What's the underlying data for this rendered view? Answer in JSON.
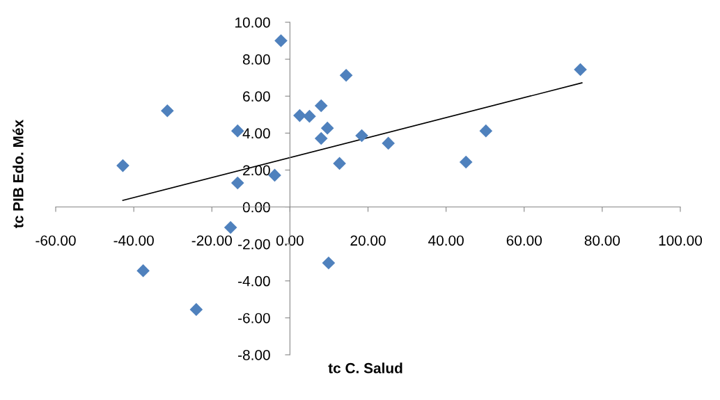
{
  "chart_data": {
    "type": "scatter",
    "xlabel": "tc C. Salud",
    "ylabel": "tc PIB Edo. Méx",
    "marker": "diamond",
    "grid": false,
    "xlim": [
      -60,
      100
    ],
    "ylim": [
      -8,
      10
    ],
    "xticks": [
      {
        "value": -60,
        "label": "-60.00"
      },
      {
        "value": -40,
        "label": "-40.00"
      },
      {
        "value": -20,
        "label": "-20.00"
      },
      {
        "value": 0,
        "label": "0.00"
      },
      {
        "value": 20,
        "label": "20.00"
      },
      {
        "value": 40,
        "label": "40.00"
      },
      {
        "value": 60,
        "label": "60.00"
      },
      {
        "value": 80,
        "label": "80.00"
      },
      {
        "value": 100,
        "label": "100.00"
      }
    ],
    "yticks": [
      {
        "value": -8,
        "label": "-8.00"
      },
      {
        "value": -6,
        "label": "-6.00"
      },
      {
        "value": -4,
        "label": "-4.00"
      },
      {
        "value": -2,
        "label": "-2.00"
      },
      {
        "value": 0,
        "label": "0.00"
      },
      {
        "value": 2,
        "label": "2.00"
      },
      {
        "value": 4,
        "label": "4.00"
      },
      {
        "value": 6,
        "label": "6.00"
      },
      {
        "value": 8,
        "label": "8.00"
      },
      {
        "value": 10,
        "label": "10.00"
      }
    ],
    "series": [
      {
        "color": "#4f81bd",
        "x": [
          -2.3,
          74.4,
          14.4,
          -31.4,
          8.0,
          2.5,
          5.0,
          -13.4,
          9.6,
          50.2,
          8.0,
          18.4,
          25.2,
          -42.8,
          12.7,
          45.1,
          -3.9,
          -13.4,
          -15.2,
          -37.6,
          9.9,
          -24.0
        ],
        "values": [
          9.0,
          7.44,
          7.13,
          5.21,
          5.48,
          4.95,
          4.91,
          4.12,
          4.27,
          4.12,
          3.71,
          3.86,
          3.45,
          2.24,
          2.36,
          2.43,
          1.72,
          1.3,
          -1.11,
          -3.45,
          -3.03,
          -5.55
        ]
      },
      {
        "type": "line",
        "color": "#000000",
        "marker": "none",
        "x": [
          -42.8,
          74.8
        ],
        "values": [
          0.36,
          6.72
        ]
      }
    ]
  }
}
